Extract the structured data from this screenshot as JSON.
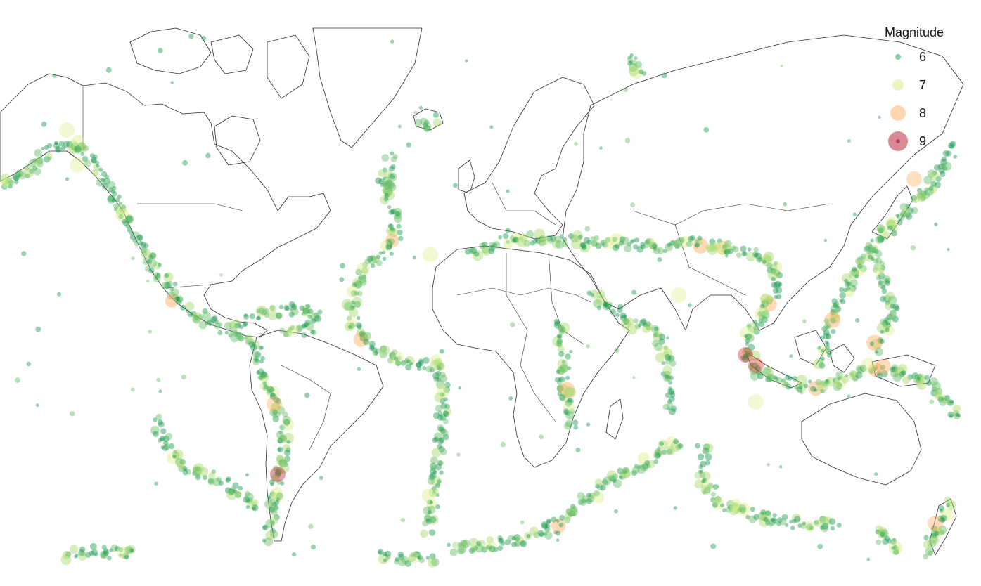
{
  "legend": {
    "title": "Magnitude",
    "items": [
      {
        "label": "6",
        "magnitude": 6,
        "color": "#1a9850"
      },
      {
        "label": "7",
        "magnitude": 7,
        "color": "#d9ef8b"
      },
      {
        "label": "8",
        "magnitude": 8,
        "color": "#fdae61"
      },
      {
        "label": "9",
        "magnitude": 9,
        "color": "#b2182b"
      }
    ]
  },
  "scale_colors": [
    "#1a9850",
    "#66bd63",
    "#a6d96a",
    "#d9ef8b",
    "#fdae61",
    "#d73027",
    "#b2182b"
  ]
}
